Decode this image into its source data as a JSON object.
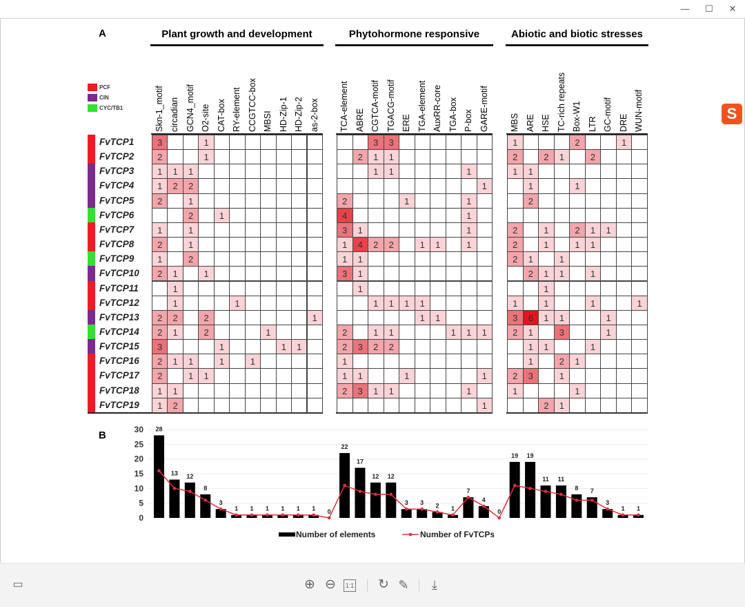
{
  "window": {
    "controls": {
      "minimize": "—",
      "maximize": "☐",
      "close": "✕"
    }
  },
  "toolbar": {
    "zoom_in": "⊕",
    "zoom_out": "⊖",
    "actual_size": "1:1",
    "rotate": "↻",
    "edit": "✎",
    "download": "⤓",
    "thumbnail": "▭"
  },
  "figure": {
    "panel_a": "A",
    "panel_b": "B",
    "legend": [
      {
        "label": "PCF",
        "color": "#ee1c25"
      },
      {
        "label": "CIN",
        "color": "#7b2a8e"
      },
      {
        "label": "CYC/TB1",
        "color": "#33e033"
      }
    ],
    "groups": [
      {
        "title": "Plant growth and development",
        "columns": [
          "Skn-1_motif",
          "circadian",
          "GCN4_motif",
          "O2-site",
          "CAT-box",
          "RY-element",
          "CCGTCC-box",
          "MBSI",
          "HD-Zip-1",
          "HD-Zip-2",
          "as-2-box"
        ]
      },
      {
        "title": "Phytohormone responsive",
        "columns": [
          "TCA-element",
          "ABRE",
          "CGTCA-motif",
          "TGACG-motif",
          "ERE",
          "TGA-element",
          "AuxRR-core",
          "TGA-box",
          "P-box",
          "GARE-motif"
        ]
      },
      {
        "title": "Abiotic and biotic stresses",
        "columns": [
          "MBS",
          "ARE",
          "HSE",
          "TC-rich repeats",
          "Box-W1",
          "LTR",
          "GC-motif",
          "DRE",
          "WUN-motif"
        ]
      }
    ],
    "rows": [
      {
        "gene": "FvTCP1",
        "class": "PCF",
        "values": [
          [
            3,
            0,
            0,
            1,
            0,
            0,
            0,
            0,
            0,
            0,
            0
          ],
          [
            0,
            0,
            3,
            3,
            0,
            0,
            0,
            0,
            0,
            0
          ],
          [
            1,
            0,
            0,
            0,
            2,
            0,
            0,
            1,
            0
          ]
        ]
      },
      {
        "gene": "FvTCP2",
        "class": "PCF",
        "values": [
          [
            2,
            0,
            0,
            1,
            0,
            0,
            0,
            0,
            0,
            0,
            0
          ],
          [
            0,
            2,
            1,
            1,
            0,
            0,
            0,
            0,
            0,
            0
          ],
          [
            2,
            0,
            2,
            1,
            0,
            2,
            0,
            0,
            0
          ]
        ]
      },
      {
        "gene": "FvTCP3",
        "class": "CIN",
        "values": [
          [
            1,
            1,
            1,
            0,
            0,
            0,
            0,
            0,
            0,
            0,
            0
          ],
          [
            0,
            0,
            1,
            1,
            0,
            0,
            0,
            0,
            1,
            0
          ],
          [
            1,
            1,
            0,
            0,
            0,
            0,
            0,
            0,
            0
          ]
        ]
      },
      {
        "gene": "FvTCP4",
        "class": "CIN",
        "values": [
          [
            1,
            2,
            2,
            0,
            0,
            0,
            0,
            0,
            0,
            0,
            0
          ],
          [
            0,
            0,
            0,
            0,
            0,
            0,
            0,
            0,
            0,
            1
          ],
          [
            0,
            1,
            0,
            0,
            1,
            0,
            0,
            0,
            0
          ]
        ]
      },
      {
        "gene": "FvTCP5",
        "class": "CIN",
        "values": [
          [
            2,
            0,
            1,
            0,
            0,
            0,
            0,
            0,
            0,
            0,
            0
          ],
          [
            2,
            0,
            0,
            0,
            1,
            0,
            0,
            0,
            1,
            0
          ],
          [
            0,
            2,
            0,
            0,
            0,
            0,
            0,
            0,
            0
          ]
        ]
      },
      {
        "gene": "FvTCP6",
        "class": "CYC/TB1",
        "values": [
          [
            0,
            0,
            2,
            0,
            1,
            0,
            0,
            0,
            0,
            0,
            0
          ],
          [
            4,
            0,
            0,
            0,
            0,
            0,
            0,
            0,
            1,
            0
          ],
          [
            0,
            0,
            0,
            0,
            0,
            0,
            0,
            0,
            0
          ]
        ]
      },
      {
        "gene": "FvTCP7",
        "class": "PCF",
        "values": [
          [
            1,
            0,
            1,
            0,
            0,
            0,
            0,
            0,
            0,
            0,
            0
          ],
          [
            3,
            1,
            0,
            0,
            0,
            0,
            0,
            0,
            1,
            0
          ],
          [
            2,
            0,
            1,
            0,
            2,
            1,
            1,
            0,
            0
          ]
        ]
      },
      {
        "gene": "FvTCP8",
        "class": "PCF",
        "values": [
          [
            2,
            0,
            1,
            0,
            0,
            0,
            0,
            0,
            0,
            0,
            0
          ],
          [
            1,
            4,
            2,
            2,
            0,
            1,
            1,
            0,
            1,
            0
          ],
          [
            2,
            0,
            1,
            0,
            1,
            1,
            0,
            0,
            0
          ]
        ]
      },
      {
        "gene": "FvTCP9",
        "class": "CYC/TB1",
        "values": [
          [
            1,
            0,
            2,
            0,
            0,
            0,
            0,
            0,
            0,
            0,
            0
          ],
          [
            1,
            1,
            0,
            0,
            0,
            0,
            0,
            0,
            0,
            0
          ],
          [
            2,
            1,
            0,
            1,
            0,
            0,
            0,
            0,
            0
          ]
        ]
      },
      {
        "gene": "FvTCP10",
        "class": "CIN",
        "values": [
          [
            2,
            1,
            0,
            1,
            0,
            0,
            0,
            0,
            0,
            0,
            0
          ],
          [
            3,
            1,
            0,
            0,
            0,
            0,
            0,
            0,
            0,
            0
          ],
          [
            0,
            2,
            1,
            1,
            0,
            1,
            0,
            0,
            0
          ]
        ]
      },
      {
        "gene": "FvTCP11",
        "class": "PCF",
        "values": [
          [
            0,
            1,
            0,
            0,
            0,
            0,
            0,
            0,
            0,
            0,
            0
          ],
          [
            0,
            1,
            0,
            0,
            0,
            0,
            0,
            0,
            0,
            0
          ],
          [
            0,
            0,
            1,
            0,
            0,
            0,
            0,
            0,
            0
          ]
        ]
      },
      {
        "gene": "FvTCP12",
        "class": "PCF",
        "values": [
          [
            0,
            1,
            0,
            0,
            0,
            1,
            0,
            0,
            0,
            0,
            0
          ],
          [
            0,
            0,
            1,
            1,
            1,
            1,
            0,
            0,
            0,
            0
          ],
          [
            1,
            0,
            1,
            0,
            0,
            1,
            0,
            0,
            1
          ]
        ]
      },
      {
        "gene": "FvTCP13",
        "class": "CIN",
        "values": [
          [
            2,
            2,
            0,
            2,
            0,
            0,
            0,
            0,
            0,
            0,
            1
          ],
          [
            0,
            0,
            0,
            0,
            0,
            1,
            1,
            0,
            0,
            0
          ],
          [
            3,
            6,
            1,
            1,
            0,
            0,
            1,
            0,
            0
          ]
        ]
      },
      {
        "gene": "FvTCP14",
        "class": "CYC/TB1",
        "values": [
          [
            2,
            1,
            0,
            2,
            0,
            0,
            0,
            1,
            0,
            0,
            0
          ],
          [
            2,
            0,
            1,
            1,
            0,
            0,
            0,
            1,
            1,
            1
          ],
          [
            2,
            1,
            0,
            3,
            0,
            0,
            1,
            0,
            0
          ]
        ]
      },
      {
        "gene": "FvTCP15",
        "class": "CIN",
        "values": [
          [
            3,
            0,
            0,
            0,
            1,
            0,
            0,
            0,
            1,
            1,
            0
          ],
          [
            2,
            3,
            2,
            2,
            0,
            0,
            0,
            0,
            0,
            0
          ],
          [
            0,
            1,
            1,
            0,
            0,
            1,
            0,
            0,
            0
          ]
        ]
      },
      {
        "gene": "FvTCP16",
        "class": "PCF",
        "values": [
          [
            2,
            1,
            1,
            0,
            1,
            0,
            1,
            0,
            0,
            0,
            0
          ],
          [
            1,
            0,
            0,
            0,
            0,
            0,
            0,
            0,
            0,
            0
          ],
          [
            0,
            1,
            0,
            2,
            1,
            0,
            0,
            0,
            0
          ]
        ]
      },
      {
        "gene": "FvTCP17",
        "class": "PCF",
        "values": [
          [
            2,
            0,
            1,
            1,
            0,
            0,
            0,
            0,
            0,
            0,
            0
          ],
          [
            1,
            1,
            0,
            0,
            1,
            0,
            0,
            0,
            0,
            1
          ],
          [
            2,
            3,
            0,
            1,
            0,
            0,
            0,
            0,
            0
          ]
        ]
      },
      {
        "gene": "FvTCP18",
        "class": "PCF",
        "values": [
          [
            1,
            1,
            0,
            0,
            0,
            0,
            0,
            0,
            0,
            0,
            0
          ],
          [
            2,
            3,
            1,
            1,
            0,
            0,
            0,
            0,
            1,
            0
          ],
          [
            1,
            0,
            0,
            0,
            1,
            0,
            0,
            0,
            0
          ]
        ]
      },
      {
        "gene": "FvTCP19",
        "class": "PCF",
        "values": [
          [
            1,
            2,
            0,
            0,
            0,
            0,
            0,
            0,
            0,
            0,
            0
          ],
          [
            0,
            0,
            0,
            0,
            0,
            0,
            0,
            0,
            0,
            1
          ],
          [
            0,
            0,
            2,
            1,
            0,
            0,
            0,
            0,
            0
          ]
        ]
      }
    ],
    "heat_colors": {
      "1": "#f9d3d6",
      "2": "#f2a5aa",
      "3": "#ea7379",
      "4": "#e6424a",
      "6": "#e2141e"
    }
  },
  "chart_data": [
    {
      "type": "heatmap",
      "note_ref": "figure.rows"
    },
    {
      "type": "bar",
      "categories": [
        "Skn-1_motif",
        "circadian",
        "GCN4_motif",
        "O2-site",
        "CAT-box",
        "RY-element",
        "CCGTCC-box",
        "MBSI",
        "HD-Zip-1",
        "HD-Zip-2",
        "as-2-box",
        "",
        "TCA-element",
        "ABRE",
        "CGTCA-motif",
        "TGACG-motif",
        "ERE",
        "TGA-element",
        "AuxRR-core",
        "TGA-box",
        "P-box",
        "GARE-motif",
        "",
        "MBS",
        "ARE",
        "HSE",
        "TC-rich repeats",
        "Box-W1",
        "LTR",
        "GC-motif",
        "DRE",
        "WUN-motif"
      ],
      "series": [
        {
          "name": "Number of elements",
          "kind": "bar",
          "color": "#000000",
          "values": [
            28,
            13,
            12,
            8,
            3,
            1,
            1,
            1,
            1,
            1,
            1,
            0,
            22,
            17,
            12,
            12,
            3,
            3,
            2,
            1,
            7,
            4,
            0,
            19,
            19,
            11,
            11,
            8,
            7,
            3,
            1,
            1
          ]
        },
        {
          "name": "Number of FvTCPs",
          "kind": "line",
          "color": "#e0303c",
          "values": [
            16,
            10,
            9,
            6,
            3,
            1,
            1,
            1,
            1,
            1,
            1,
            0,
            11,
            9,
            8,
            8,
            3,
            3,
            2,
            1,
            7,
            4,
            0,
            11,
            10,
            9,
            8,
            6,
            6,
            3,
            1,
            1
          ]
        }
      ],
      "data_labels": [
        "28",
        "13",
        "12",
        "8",
        "3",
        "1",
        "1",
        "1",
        "1",
        "1",
        "1",
        "0",
        "22",
        "17",
        "12",
        "12",
        "3",
        "3",
        "2",
        "1",
        "7",
        "4",
        "0",
        "19",
        "19",
        "11",
        "11",
        "8",
        "7",
        "3",
        "1",
        "1"
      ],
      "yticks": [
        "0",
        "5",
        "10",
        "15",
        "20",
        "25",
        "30"
      ],
      "ylim": [
        0,
        30
      ],
      "grid": true,
      "legend_position": "bottom"
    }
  ]
}
